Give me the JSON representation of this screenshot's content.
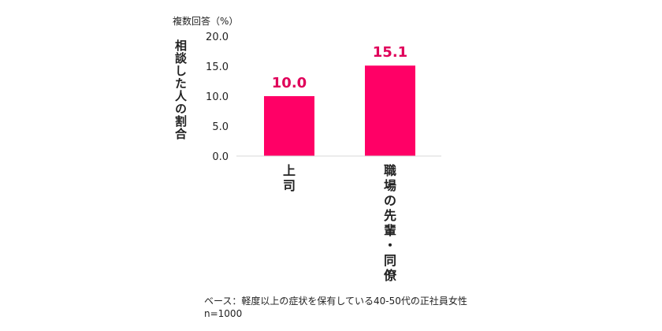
{
  "chart_data": {
    "type": "bar",
    "unit_note": "複数回答（%）",
    "ylabel": "相談した人の割合",
    "xlabel": "",
    "categories": [
      "上司",
      "職場の先輩・同僚"
    ],
    "values": [
      10.0,
      15.1
    ],
    "data_labels": [
      "10.0",
      "15.1"
    ],
    "yticks": [
      "20.0",
      "15.0",
      "10.0",
      "5.0",
      "0.0"
    ],
    "ylim": [
      0,
      20
    ],
    "grid": false,
    "legend": "none",
    "colors": {
      "bar": "#FF0066",
      "data_label": "#E0005A",
      "axis": "#D9D9D9",
      "text": "#222222"
    }
  },
  "footnote": {
    "base": "ベース：軽度以上の症状を保有している40-50代の正社員女性",
    "n": "n=1000"
  }
}
